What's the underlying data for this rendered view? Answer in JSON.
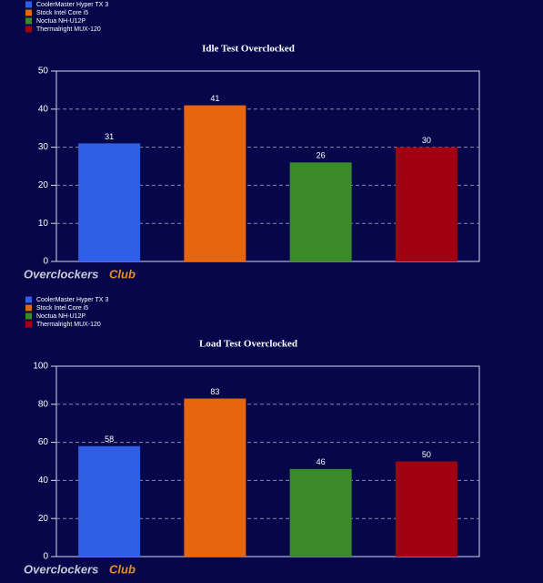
{
  "chart_data": [
    {
      "type": "bar",
      "title": "Idle Test Overclocked",
      "categories": [
        null
      ],
      "series": [
        {
          "name": "CoolerMaster Hyper TX 3",
          "color": "#2f5fe6",
          "values": [
            31
          ]
        },
        {
          "name": "Stock Intel Core i5",
          "color": "#e8650f",
          "values": [
            41
          ]
        },
        {
          "name": "Noctua NH-U12P",
          "color": "#3b8a2a",
          "values": [
            26
          ]
        },
        {
          "name": "Thermalright MUX-120",
          "color": "#a0000f",
          "values": [
            30
          ]
        }
      ],
      "ylim": [
        0,
        50
      ],
      "yticks": [
        0,
        10,
        20,
        30,
        40,
        50
      ],
      "grid": true,
      "logo": [
        "Overclockers",
        "Club"
      ]
    },
    {
      "type": "bar",
      "title": "Load Test Overclocked",
      "categories": [
        null
      ],
      "series": [
        {
          "name": "CoolerMaster Hyper TX 3",
          "color": "#2f5fe6",
          "values": [
            58
          ]
        },
        {
          "name": "Stock Intel Core i5",
          "color": "#e8650f",
          "values": [
            83
          ]
        },
        {
          "name": "Noctua NH-U12P",
          "color": "#3b8a2a",
          "values": [
            46
          ]
        },
        {
          "name": "Thermalright MUX-120",
          "color": "#a0000f",
          "values": [
            50
          ]
        }
      ],
      "ylim": [
        0,
        100
      ],
      "yticks": [
        0,
        20,
        40,
        60,
        80,
        100
      ],
      "grid": true,
      "logo": [
        "Overclockers",
        "Club"
      ]
    }
  ]
}
